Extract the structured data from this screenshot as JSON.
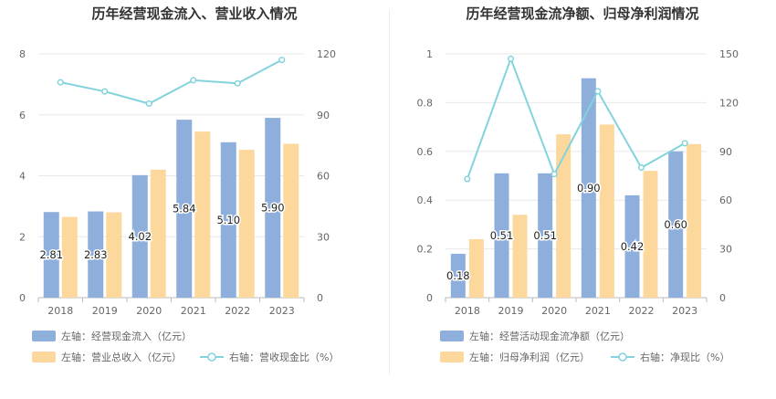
{
  "colors": {
    "bar_left": "#8eafdc",
    "bar_right": "#fcd89c",
    "line": "#83d3dc",
    "grid": "#e8e8e8",
    "axis": "#bbbbbb"
  },
  "chart_data": [
    {
      "type": "bar+line",
      "title": "历年经营现金流入、营业收入情况",
      "categories": [
        "2018",
        "2019",
        "2020",
        "2021",
        "2022",
        "2023"
      ],
      "ylim_left": [
        0,
        8
      ],
      "yticks_left": [
        0,
        2,
        4,
        6,
        8
      ],
      "ylim_right": [
        0,
        120
      ],
      "yticks_right": [
        0,
        30,
        60,
        90,
        120
      ],
      "grid": true,
      "legend_position": "bottom-left",
      "series": [
        {
          "name": "左轴：经营现金流入（亿元）",
          "axis": "left",
          "kind": "bar",
          "values": [
            2.81,
            2.83,
            4.02,
            5.84,
            5.1,
            5.9
          ],
          "labels": [
            "2.81",
            "2.83",
            "4.02",
            "5.84",
            "5.10",
            "5.90"
          ]
        },
        {
          "name": "左轴：营业总收入（亿元）",
          "axis": "left",
          "kind": "bar",
          "values": [
            2.65,
            2.8,
            4.2,
            5.45,
            4.85,
            5.05
          ]
        },
        {
          "name": "右轴：营收现金比（%）",
          "axis": "right",
          "kind": "line",
          "values": [
            106,
            101.5,
            95.5,
            107,
            105.5,
            117
          ]
        }
      ]
    },
    {
      "type": "bar+line",
      "title": "历年经营现金流净额、归母净利润情况",
      "categories": [
        "2018",
        "2019",
        "2020",
        "2021",
        "2022",
        "2023"
      ],
      "ylim_left": [
        0,
        1
      ],
      "yticks_left": [
        0,
        0.2,
        0.4,
        0.6,
        0.8,
        1
      ],
      "yticklabels_left": [
        "0",
        "0.2",
        "0.4",
        "0.6",
        "0.8",
        "1"
      ],
      "ylim_right": [
        0,
        150
      ],
      "yticks_right": [
        0,
        30,
        60,
        90,
        120,
        150
      ],
      "grid": true,
      "legend_position": "bottom-left",
      "series": [
        {
          "name": "左轴：经营活动现金流净额（亿元）",
          "axis": "left",
          "kind": "bar",
          "values": [
            0.18,
            0.51,
            0.51,
            0.9,
            0.42,
            0.6
          ],
          "labels": [
            "0.18",
            "0.51",
            "0.51",
            "0.90",
            "0.42",
            "0.60"
          ]
        },
        {
          "name": "左轴：归母净利润（亿元）",
          "axis": "left",
          "kind": "bar",
          "values": [
            0.24,
            0.34,
            0.67,
            0.71,
            0.52,
            0.63
          ]
        },
        {
          "name": "右轴：净现比（%）",
          "axis": "right",
          "kind": "line",
          "values": [
            73,
            147,
            76,
            127,
            80,
            95
          ]
        }
      ]
    }
  ]
}
